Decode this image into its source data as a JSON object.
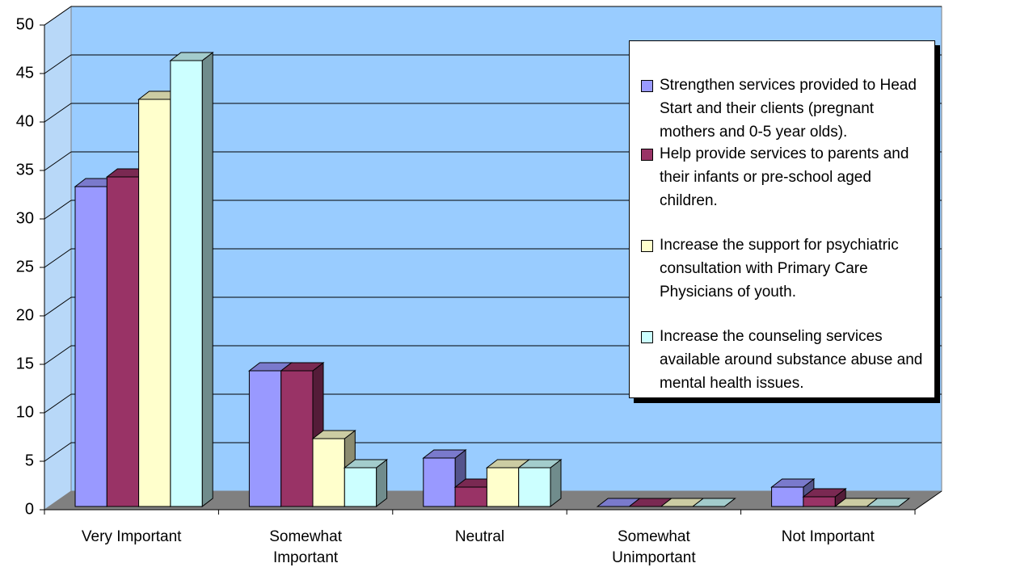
{
  "chart_data": {
    "type": "bar3d",
    "categories": [
      "Very Important",
      "Somewhat Important",
      "Neutral",
      "Somewhat Unimportant",
      "Not Important"
    ],
    "series": [
      {
        "name": "Strengthen services provided to Head Start and their clients (pregnant mothers and 0-5 year olds).",
        "color": "#9999ff",
        "values": [
          33,
          14,
          5,
          0,
          2
        ]
      },
      {
        "name": "Help provide services to parents and their infants or pre-school aged children.",
        "color": "#993366",
        "values": [
          34,
          14,
          2,
          0,
          1
        ]
      },
      {
        "name": "Increase the support for psychiatric consultation with Primary Care Physicians of youth.",
        "color": "#ffffcc",
        "values": [
          42,
          7,
          4,
          0,
          0
        ]
      },
      {
        "name": "Increase the counseling services available around substance abuse and mental health issues.",
        "color": "#ccffff",
        "values": [
          46,
          4,
          4,
          0,
          0
        ]
      }
    ],
    "ylim": [
      0,
      50
    ],
    "yticks": [
      0,
      5,
      10,
      15,
      20,
      25,
      30,
      35,
      40,
      45,
      50
    ],
    "grid": true,
    "legend": "right"
  }
}
